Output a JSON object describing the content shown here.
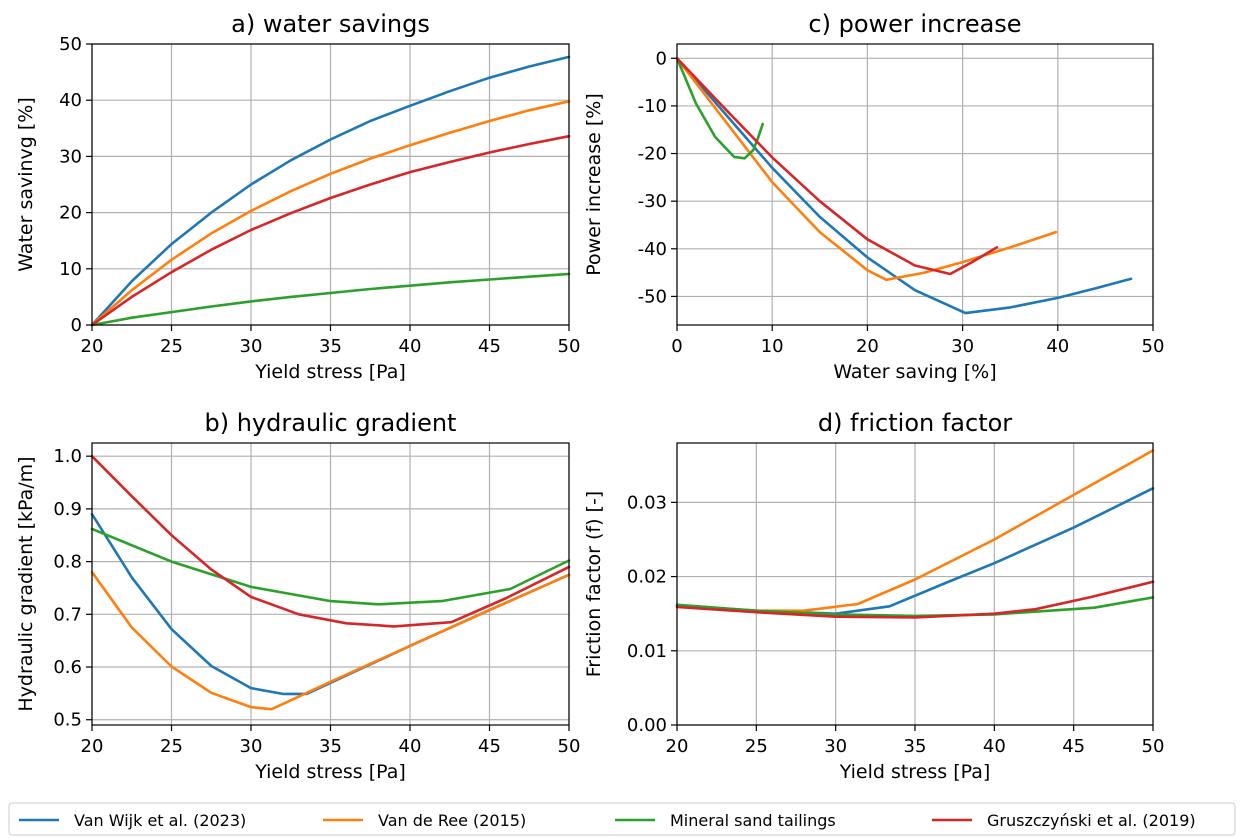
{
  "colors": {
    "van_wijk": "#1f77b4",
    "van_de_ree": "#ff7f0e",
    "mineral_sand": "#2ca02c",
    "gruszczynski": "#d62728"
  },
  "legend": {
    "placement": "bottom",
    "entries": [
      {
        "label": "Van Wijk et al. (2023)",
        "color": "#1f77b4"
      },
      {
        "label": "Van de Ree (2015)",
        "color": "#ff7f0e"
      },
      {
        "label": "Mineral sand tailings",
        "color": "#2ca02c"
      },
      {
        "label": "Gruszczyński et al. (2019)",
        "color": "#d62728"
      }
    ]
  },
  "chart_data": [
    {
      "id": "a",
      "type": "line",
      "title": "a) water savings",
      "xlabel": "Yield stress [Pa]",
      "ylabel": "Water savinvg [%]",
      "xlim": [
        20,
        50
      ],
      "ylim": [
        0,
        50
      ],
      "xticks": [
        20,
        25,
        30,
        35,
        40,
        45,
        50
      ],
      "yticks": [
        0,
        10,
        20,
        30,
        40,
        50
      ],
      "grid": true,
      "series": [
        {
          "name": "Van Wijk et al. (2023)",
          "color": "#1f77b4",
          "x": [
            20,
            22.5,
            25,
            27.5,
            30,
            32.5,
            35,
            37.5,
            40,
            42.5,
            45,
            47.5,
            50
          ],
          "y": [
            0,
            7.8,
            14.4,
            20.0,
            25.0,
            29.3,
            33.0,
            36.3,
            39.0,
            41.6,
            44.0,
            46.0,
            47.7
          ]
        },
        {
          "name": "Van de Ree (2015)",
          "color": "#ff7f0e",
          "x": [
            20,
            22.5,
            25,
            27.5,
            30,
            32.5,
            35,
            37.5,
            40,
            42.5,
            45,
            47.5,
            50
          ],
          "y": [
            0,
            6.2,
            11.6,
            16.3,
            20.3,
            23.8,
            26.9,
            29.6,
            32.0,
            34.2,
            36.3,
            38.2,
            39.8
          ]
        },
        {
          "name": "Mineral sand tailings",
          "color": "#2ca02c",
          "x": [
            20,
            22.5,
            25,
            27.5,
            30,
            32.5,
            35,
            37.5,
            40,
            42.5,
            45,
            47.5,
            50
          ],
          "y": [
            0,
            1.3,
            2.3,
            3.3,
            4.2,
            5.0,
            5.7,
            6.4,
            7.0,
            7.6,
            8.1,
            8.6,
            9.1
          ]
        },
        {
          "name": "Gruszczyński et al. (2019)",
          "color": "#d62728",
          "x": [
            20,
            22.5,
            25,
            27.5,
            30,
            32.5,
            35,
            37.5,
            40,
            42.5,
            45,
            47.5,
            50
          ],
          "y": [
            0,
            5.0,
            9.4,
            13.4,
            16.9,
            19.9,
            22.6,
            25.0,
            27.2,
            29.0,
            30.7,
            32.2,
            33.6
          ]
        }
      ]
    },
    {
      "id": "c",
      "type": "line",
      "title": "c) power increase",
      "xlabel": "Water saving [%]",
      "ylabel": "Power increase [%]",
      "xlim": [
        0,
        50
      ],
      "ylim": [
        -56,
        3
      ],
      "xticks": [
        0,
        10,
        20,
        30,
        40,
        50
      ],
      "yticks": [
        0,
        -10,
        -20,
        -30,
        -40,
        -50
      ],
      "grid": true,
      "series": [
        {
          "name": "Van Wijk et al. (2023)",
          "color": "#1f77b4",
          "x": [
            0,
            5,
            10,
            15,
            20,
            25,
            30.3,
            35,
            40,
            44,
            47.7
          ],
          "y": [
            0,
            -11.5,
            -23.0,
            -33.3,
            -41.8,
            -48.7,
            -53.5,
            -52.3,
            -50.3,
            -48.3,
            -46.3
          ]
        },
        {
          "name": "Van de Ree (2015)",
          "color": "#ff7f0e",
          "x": [
            0,
            5,
            10,
            15,
            20,
            22.0,
            26,
            30,
            35,
            39.8
          ],
          "y": [
            0,
            -13.0,
            -26.0,
            -36.5,
            -44.5,
            -46.5,
            -45.0,
            -42.8,
            -39.7,
            -36.5
          ]
        },
        {
          "name": "Mineral sand tailings",
          "color": "#2ca02c",
          "x": [
            0,
            2,
            4,
            6,
            7.1,
            8.0,
            8.5,
            9.0
          ],
          "y": [
            0,
            -9.5,
            -16.5,
            -20.7,
            -21.0,
            -19.3,
            -16.8,
            -13.8
          ]
        },
        {
          "name": "Gruszczyński et al. (2019)",
          "color": "#d62728",
          "x": [
            0,
            5,
            10,
            15,
            20,
            25,
            28.7,
            31,
            33.6
          ],
          "y": [
            0,
            -10.5,
            -20.8,
            -30.0,
            -38.0,
            -43.5,
            -45.3,
            -42.8,
            -39.7
          ]
        }
      ]
    },
    {
      "id": "b",
      "type": "line",
      "title": "b) hydraulic gradient",
      "xlabel": "Yield stress [Pa]",
      "ylabel": "Hydraulic gradient [kPa/m]",
      "xlim": [
        20,
        50
      ],
      "ylim": [
        0.49,
        1.025
      ],
      "xticks": [
        20,
        25,
        30,
        35,
        40,
        45,
        50
      ],
      "yticks": [
        0.5,
        0.6,
        0.7,
        0.8,
        0.9,
        1.0
      ],
      "ytick_labels": [
        "0.5",
        "0.6",
        "0.7",
        "0.8",
        "0.9",
        "1.0"
      ],
      "grid": true,
      "series": [
        {
          "name": "Van Wijk et al. (2023)",
          "color": "#1f77b4",
          "x": [
            20,
            22.5,
            25,
            27.5,
            30,
            32,
            33.5,
            36,
            40,
            45,
            50
          ],
          "y": [
            0.89,
            0.77,
            0.672,
            0.602,
            0.56,
            0.549,
            0.549,
            0.584,
            0.64,
            0.708,
            0.775
          ]
        },
        {
          "name": "Van de Ree (2015)",
          "color": "#ff7f0e",
          "x": [
            20,
            22.5,
            25,
            27.5,
            30,
            31.3,
            35,
            40,
            45,
            50
          ],
          "y": [
            0.78,
            0.675,
            0.601,
            0.551,
            0.524,
            0.52,
            0.572,
            0.64,
            0.708,
            0.775
          ]
        },
        {
          "name": "Mineral sand tailings",
          "color": "#2ca02c",
          "x": [
            20,
            25,
            30,
            35,
            38,
            42,
            46.3,
            50
          ],
          "y": [
            0.862,
            0.8,
            0.752,
            0.725,
            0.719,
            0.725,
            0.748,
            0.802
          ]
        },
        {
          "name": "Gruszczyński et al. (2019)",
          "color": "#d62728",
          "x": [
            20,
            22.5,
            25,
            27.5,
            30,
            33,
            36,
            39,
            42.6,
            46,
            50
          ],
          "y": [
            1.0,
            0.924,
            0.85,
            0.785,
            0.733,
            0.7,
            0.683,
            0.677,
            0.685,
            0.73,
            0.79
          ]
        }
      ]
    },
    {
      "id": "d",
      "type": "line",
      "title": "d) friction factor",
      "xlabel": "Yield stress [Pa]",
      "ylabel": "Friction factor (f) [-]",
      "xlim": [
        20,
        50
      ],
      "ylim": [
        0,
        0.038
      ],
      "xticks": [
        20,
        25,
        30,
        35,
        40,
        45,
        50
      ],
      "yticks": [
        0,
        0.01,
        0.02,
        0.03
      ],
      "ytick_labels": [
        "0.00",
        "0.01",
        "0.02",
        "0.03"
      ],
      "grid": true,
      "series": [
        {
          "name": "Van Wijk et al. (2023)",
          "color": "#1f77b4",
          "x": [
            20,
            25,
            30,
            33.4,
            37,
            40,
            45,
            50
          ],
          "y": [
            0.0161,
            0.0154,
            0.015,
            0.016,
            0.0192,
            0.0218,
            0.0266,
            0.0319
          ]
        },
        {
          "name": "Van de Ree (2015)",
          "color": "#ff7f0e",
          "x": [
            20,
            25,
            28,
            31.4,
            35,
            40,
            45,
            50
          ],
          "y": [
            0.0161,
            0.0154,
            0.0154,
            0.0163,
            0.0196,
            0.025,
            0.031,
            0.037
          ]
        },
        {
          "name": "Mineral sand tailings",
          "color": "#2ca02c",
          "x": [
            20,
            25,
            30,
            35,
            40,
            46.3,
            50
          ],
          "y": [
            0.0162,
            0.0154,
            0.0149,
            0.0147,
            0.0149,
            0.0158,
            0.0172
          ]
        },
        {
          "name": "Gruszczyński et al. (2019)",
          "color": "#d62728",
          "x": [
            20,
            25,
            30,
            35,
            40,
            42.6,
            46,
            50
          ],
          "y": [
            0.0159,
            0.0152,
            0.0146,
            0.0145,
            0.015,
            0.0156,
            0.0172,
            0.0193
          ]
        }
      ]
    }
  ]
}
